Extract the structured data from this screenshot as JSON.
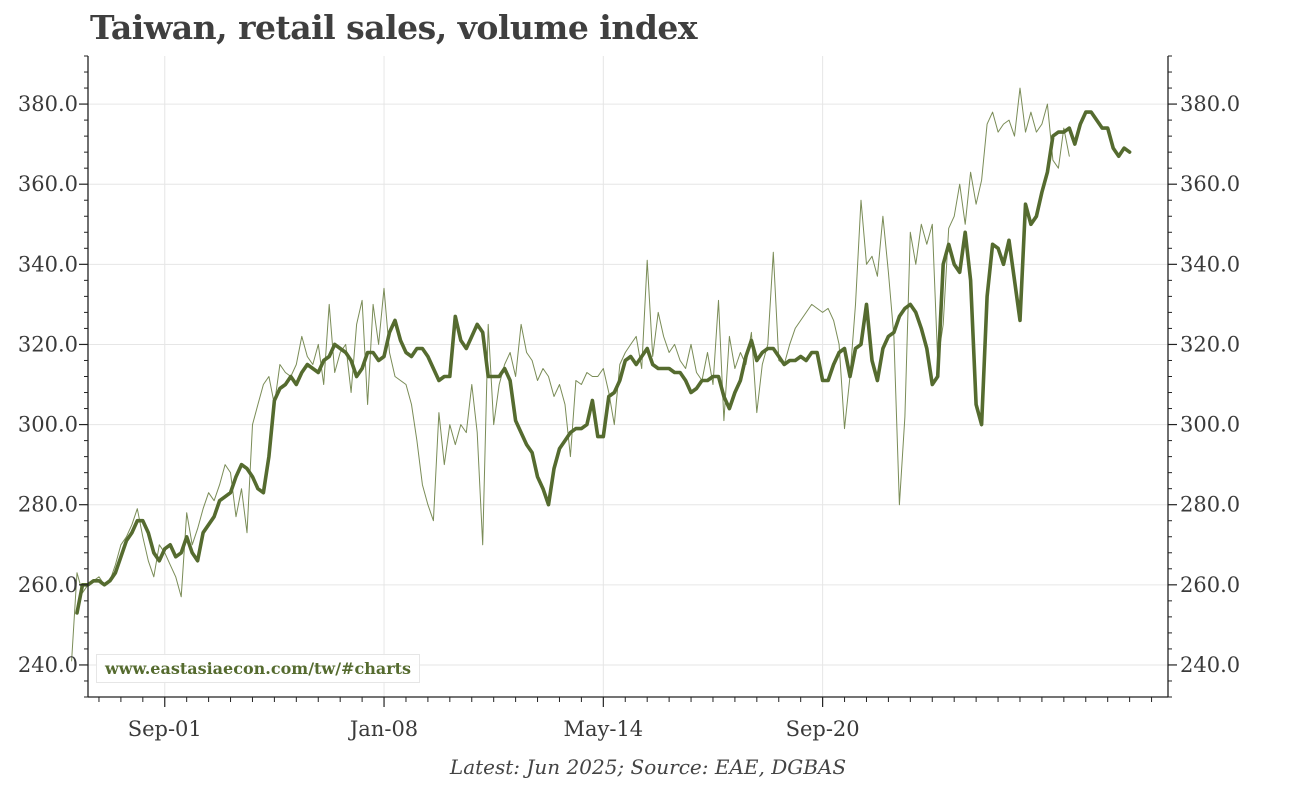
{
  "chart_data": {
    "type": "line",
    "title": "Taiwan, retail sales, volume index",
    "caption": "Latest: Jun 2025; Source: EAE, DGBAS",
    "watermark": "www.eastasiaecon.com/tw/#charts",
    "ylim": [
      232,
      392
    ],
    "y_ticks": [
      240,
      260,
      280,
      300,
      320,
      340,
      360,
      380
    ],
    "y_tick_labels": [
      "240.0",
      "260.0",
      "280.0",
      "300.0",
      "320.0",
      "340.0",
      "360.0",
      "380.0"
    ],
    "x_range_index": [
      -14,
      183
    ],
    "x_ticks": [
      {
        "index": 0,
        "label": "Sep-01"
      },
      {
        "index": 40,
        "label": "Jan-08"
      },
      {
        "index": 80,
        "label": "May-14"
      },
      {
        "index": 120,
        "label": "Sep-20"
      }
    ],
    "series": [
      {
        "name": "Monthly",
        "color": "#6b7f45",
        "start_index": -17,
        "values": [
          241,
          263,
          258,
          260,
          261,
          262,
          260,
          261,
          265,
          270,
          272,
          275,
          279,
          272,
          266,
          262,
          270,
          268,
          265,
          262,
          257,
          278,
          270,
          274,
          279,
          283,
          281,
          285,
          290,
          288,
          277,
          284,
          273,
          300,
          305,
          310,
          312,
          305,
          315,
          313,
          312,
          315,
          322,
          317,
          315,
          320,
          310,
          330,
          313,
          318,
          320,
          308,
          325,
          331,
          305,
          330,
          320,
          334,
          318,
          312,
          311,
          310,
          305,
          296,
          285,
          280,
          276,
          303,
          290,
          300,
          295,
          300,
          298,
          310,
          298,
          270,
          325,
          300,
          310,
          315,
          318,
          312,
          325,
          318,
          316,
          311,
          314,
          312,
          307,
          310,
          305,
          292,
          311,
          310,
          313,
          312,
          312,
          314,
          308,
          300,
          315,
          318,
          320,
          322,
          314,
          341,
          317,
          328,
          322,
          318,
          320,
          316,
          314,
          320,
          313,
          311,
          318,
          310,
          331,
          301,
          322,
          314,
          318,
          315,
          323,
          303,
          315,
          320,
          343,
          316,
          315,
          320,
          324,
          326,
          328,
          330,
          329,
          328,
          329,
          326,
          320,
          299,
          312,
          330,
          356,
          340,
          342,
          337,
          352,
          338,
          322,
          280,
          302,
          348,
          340,
          350,
          345,
          350,
          316,
          325,
          349,
          352,
          360,
          350,
          363,
          355,
          361,
          375,
          378,
          373,
          375,
          376,
          372,
          384,
          373,
          378,
          373,
          375,
          380,
          366,
          364,
          374,
          367
        ],
        "reading": "thin"
      },
      {
        "name": "3-month average",
        "color": "#556b2f",
        "start_index": -16,
        "values": [
          253,
          260,
          260,
          261,
          261,
          260,
          261,
          263,
          267,
          271,
          273,
          276,
          276,
          273,
          268,
          266,
          269,
          270,
          267,
          268,
          272,
          268,
          266,
          273,
          275,
          277,
          281,
          282,
          283,
          287,
          290,
          289,
          287,
          284,
          283,
          292,
          306,
          309,
          310,
          312,
          310,
          313,
          315,
          314,
          313,
          316,
          317,
          320,
          319,
          318,
          316,
          312,
          314,
          318,
          318,
          316,
          317,
          323,
          326,
          321,
          318,
          317,
          319,
          319,
          317,
          314,
          311,
          312,
          312,
          327,
          321,
          319,
          322,
          325,
          323,
          312,
          312,
          312,
          314,
          311,
          301,
          298,
          295,
          293,
          287,
          284,
          280,
          289,
          294,
          296,
          298,
          299,
          299,
          300,
          306,
          297,
          297,
          307,
          308,
          311,
          316,
          317,
          315,
          317,
          319,
          315,
          314,
          314,
          314,
          313,
          313,
          311,
          308,
          309,
          311,
          311,
          312,
          312,
          307,
          304,
          308,
          311,
          317,
          321,
          316,
          318,
          319,
          319,
          317,
          315,
          316,
          316,
          317,
          316,
          318,
          318,
          311,
          311,
          315,
          318,
          319,
          312,
          319,
          320,
          330,
          316,
          311,
          319,
          322,
          323,
          327,
          329,
          330,
          328,
          324,
          319,
          310,
          312,
          340,
          345,
          340,
          338,
          348,
          336,
          305,
          300,
          332,
          345,
          344,
          340,
          346,
          336,
          326,
          355,
          350,
          352,
          358,
          363,
          372,
          373,
          373,
          374,
          370,
          375,
          378,
          378,
          376,
          374,
          374,
          369,
          367,
          369,
          368
        ]
      }
    ]
  }
}
